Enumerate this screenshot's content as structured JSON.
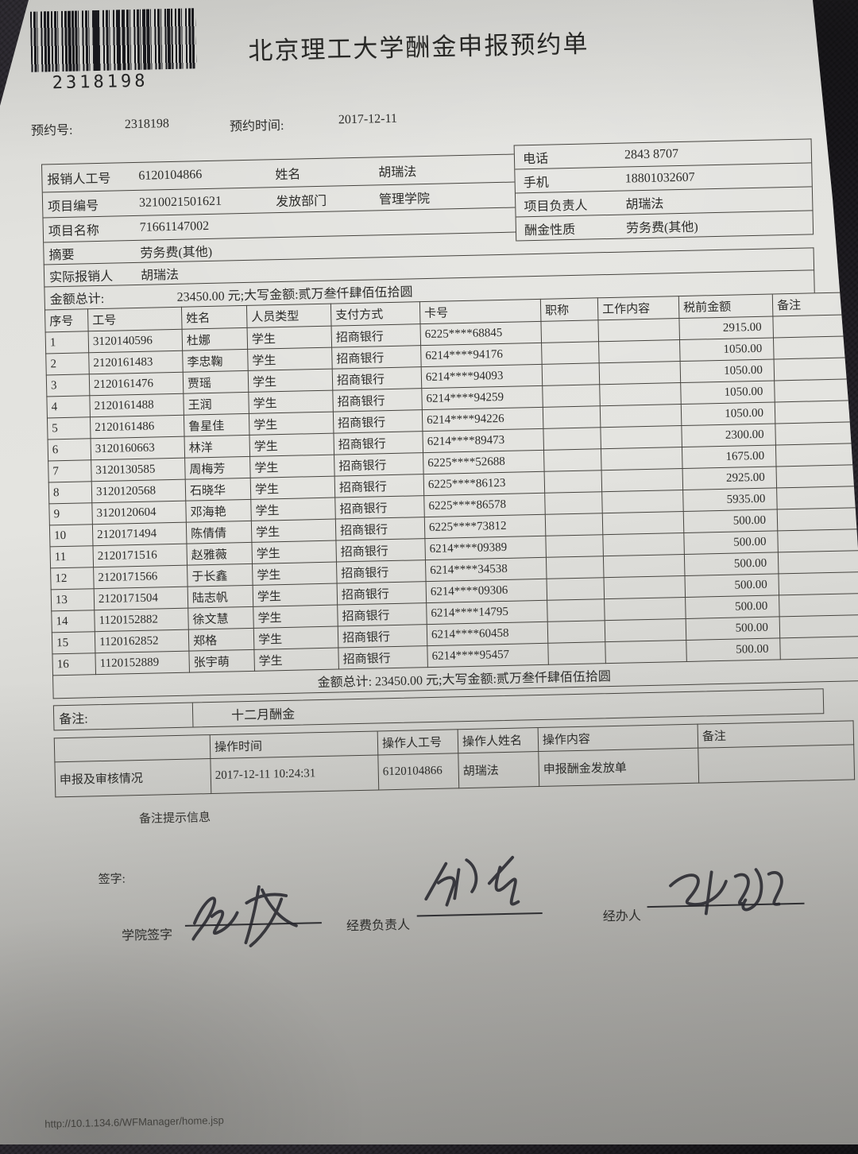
{
  "palette": {
    "paper": "#e2e2de",
    "background": "#28252c",
    "ink": "#2c2c2a",
    "table_line": "#46443f"
  },
  "barcode": {
    "number": "2318198"
  },
  "title": "北京理工大学酬金申报预约单",
  "reservation": {
    "no_label": "预约号:",
    "no": "2318198",
    "time_label": "预约时间:",
    "time": "2017-12-11"
  },
  "info": {
    "employee_id_label": "报销人工号",
    "employee_id": "6120104866",
    "name_label": "姓名",
    "name": "胡瑞法",
    "phone_label": "电话",
    "phone": "2843 8707",
    "project_no_label": "项目编号",
    "project_no": "3210021501621",
    "department_label": "发放部门",
    "department": "管理学院",
    "mobile_label": "手机",
    "mobile": "18801032607",
    "project_name_label": "项目名称",
    "project_name": "71661147002",
    "leader_label": "项目负责人",
    "leader": "胡瑞法",
    "type_label": "酬金性质",
    "type": "劳务费(其他)",
    "summary_label": "摘要",
    "summary": "劳务费(其他)",
    "claimant_label": "实际报销人",
    "claimant": "胡瑞法",
    "total_label": "金额总计:",
    "total_value": "23450.00 元;大写金额:贰万叁仟肆佰伍拾圆"
  },
  "table": {
    "headers": [
      "序号",
      "工号",
      "姓名",
      "人员类型",
      "支付方式",
      "卡号",
      "职称",
      "工作内容",
      "税前金额",
      "备注"
    ],
    "rows": [
      [
        "1",
        "3120140596",
        "杜娜",
        "学生",
        "招商银行",
        "6225****68845",
        "",
        "",
        "2915.00",
        ""
      ],
      [
        "2",
        "2120161483",
        "李忠鞠",
        "学生",
        "招商银行",
        "6214****94176",
        "",
        "",
        "1050.00",
        ""
      ],
      [
        "3",
        "2120161476",
        "贾瑶",
        "学生",
        "招商银行",
        "6214****94093",
        "",
        "",
        "1050.00",
        ""
      ],
      [
        "4",
        "2120161488",
        "王润",
        "学生",
        "招商银行",
        "6214****94259",
        "",
        "",
        "1050.00",
        ""
      ],
      [
        "5",
        "2120161486",
        "鲁星佳",
        "学生",
        "招商银行",
        "6214****94226",
        "",
        "",
        "1050.00",
        ""
      ],
      [
        "6",
        "3120160663",
        "林洋",
        "学生",
        "招商银行",
        "6214****89473",
        "",
        "",
        "2300.00",
        ""
      ],
      [
        "7",
        "3120130585",
        "周梅芳",
        "学生",
        "招商银行",
        "6225****52688",
        "",
        "",
        "1675.00",
        ""
      ],
      [
        "8",
        "3120120568",
        "石晓华",
        "学生",
        "招商银行",
        "6225****86123",
        "",
        "",
        "2925.00",
        ""
      ],
      [
        "9",
        "3120120604",
        "邓海艳",
        "学生",
        "招商银行",
        "6225****86578",
        "",
        "",
        "5935.00",
        ""
      ],
      [
        "10",
        "2120171494",
        "陈倩倩",
        "学生",
        "招商银行",
        "6225****73812",
        "",
        "",
        "500.00",
        ""
      ],
      [
        "11",
        "2120171516",
        "赵雅薇",
        "学生",
        "招商银行",
        "6214****09389",
        "",
        "",
        "500.00",
        ""
      ],
      [
        "12",
        "2120171566",
        "于长鑫",
        "学生",
        "招商银行",
        "6214****34538",
        "",
        "",
        "500.00",
        ""
      ],
      [
        "13",
        "2120171504",
        "陆志帆",
        "学生",
        "招商银行",
        "6214****09306",
        "",
        "",
        "500.00",
        ""
      ],
      [
        "14",
        "1120152882",
        "徐文慧",
        "学生",
        "招商银行",
        "6214****14795",
        "",
        "",
        "500.00",
        ""
      ],
      [
        "15",
        "1120162852",
        "郑格",
        "学生",
        "招商银行",
        "6214****60458",
        "",
        "",
        "500.00",
        ""
      ],
      [
        "16",
        "1120152889",
        "张宇萌",
        "学生",
        "招商银行",
        "6214****95457",
        "",
        "",
        "500.00",
        ""
      ]
    ],
    "total_row": "金额总计: 23450.00 元;大写金额:贰万叁仟肆佰伍拾圆"
  },
  "remark": {
    "label": "备注:",
    "value": "十二月酬金"
  },
  "operations": {
    "row_label": "申报及审核情况",
    "headers": [
      "操作时间",
      "操作人工号",
      "操作人姓名",
      "操作内容",
      "备注"
    ],
    "row": {
      "time": "2017-12-11 10:24:31",
      "operator_id": "6120104866",
      "operator_name": "胡瑞法",
      "content": "申报酬金发放单",
      "remark": ""
    }
  },
  "hint": "备注提示信息",
  "signatures": {
    "sign_label": "签字:",
    "college_label": "学院签字",
    "funder_label": "经费负责人",
    "handler_label": "经办人"
  },
  "footer_url": "http://10.1.134.6/WFManager/home.jsp"
}
